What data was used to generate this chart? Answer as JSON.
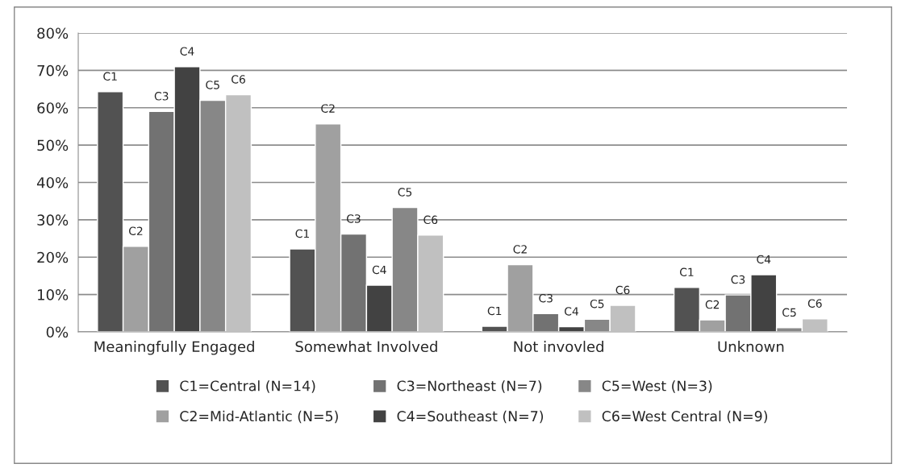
{
  "chart_data": {
    "type": "bar",
    "categories": [
      "Meaningfully Engaged",
      "Somewhat Involved",
      "Not invovled",
      "Unknown"
    ],
    "series": [
      {
        "name": "C1=Central (N=14)",
        "color": "#525252",
        "values": [
          64.3,
          22.2,
          1.5,
          11.9
        ],
        "value_labels": [
          "C1",
          "C1",
          "C1",
          "C1"
        ]
      },
      {
        "name": "C2=Mid-Atlantic (N=5)",
        "color": "#a0a0a0",
        "values": [
          22.9,
          55.7,
          18,
          3.2
        ],
        "value_labels": [
          "C2",
          "C2",
          "C2",
          "C2"
        ]
      },
      {
        "name": "C3=Northeast (N=7)",
        "color": "#727272",
        "values": [
          59,
          26.2,
          4.9,
          9.9
        ],
        "value_labels": [
          "C3",
          "C3",
          "C3",
          "C3"
        ]
      },
      {
        "name": "C4=Southeast (N=7)",
        "color": "#424242",
        "values": [
          71,
          12.5,
          1.4,
          15.3
        ],
        "value_labels": [
          "C4",
          "C4",
          "C4",
          "C4"
        ]
      },
      {
        "name": "C5=West (N=3)",
        "color": "#878787",
        "values": [
          62,
          33.3,
          3.4,
          1.1
        ],
        "value_labels": [
          "C5",
          "C5",
          "C5",
          "C5"
        ]
      },
      {
        "name": "C6=West Central (N=9)",
        "color": "#c0c0c0",
        "values": [
          63.5,
          25.9,
          7.1,
          3.5
        ],
        "value_labels": [
          "C6",
          "C6",
          "C6",
          "C6"
        ]
      }
    ],
    "ylim": [
      0,
      80
    ],
    "yticks": [
      {
        "value": 0,
        "label": "0%"
      },
      {
        "value": 10,
        "label": "10%"
      },
      {
        "value": 20,
        "label": "20%"
      },
      {
        "value": 30,
        "label": "30%"
      },
      {
        "value": 40,
        "label": "40%"
      },
      {
        "value": 50,
        "label": "50%"
      },
      {
        "value": 60,
        "label": "60%"
      },
      {
        "value": 70,
        "label": "70%"
      },
      {
        "value": 80,
        "label": "80%"
      }
    ],
    "grid": "y",
    "legend": "bottom"
  }
}
